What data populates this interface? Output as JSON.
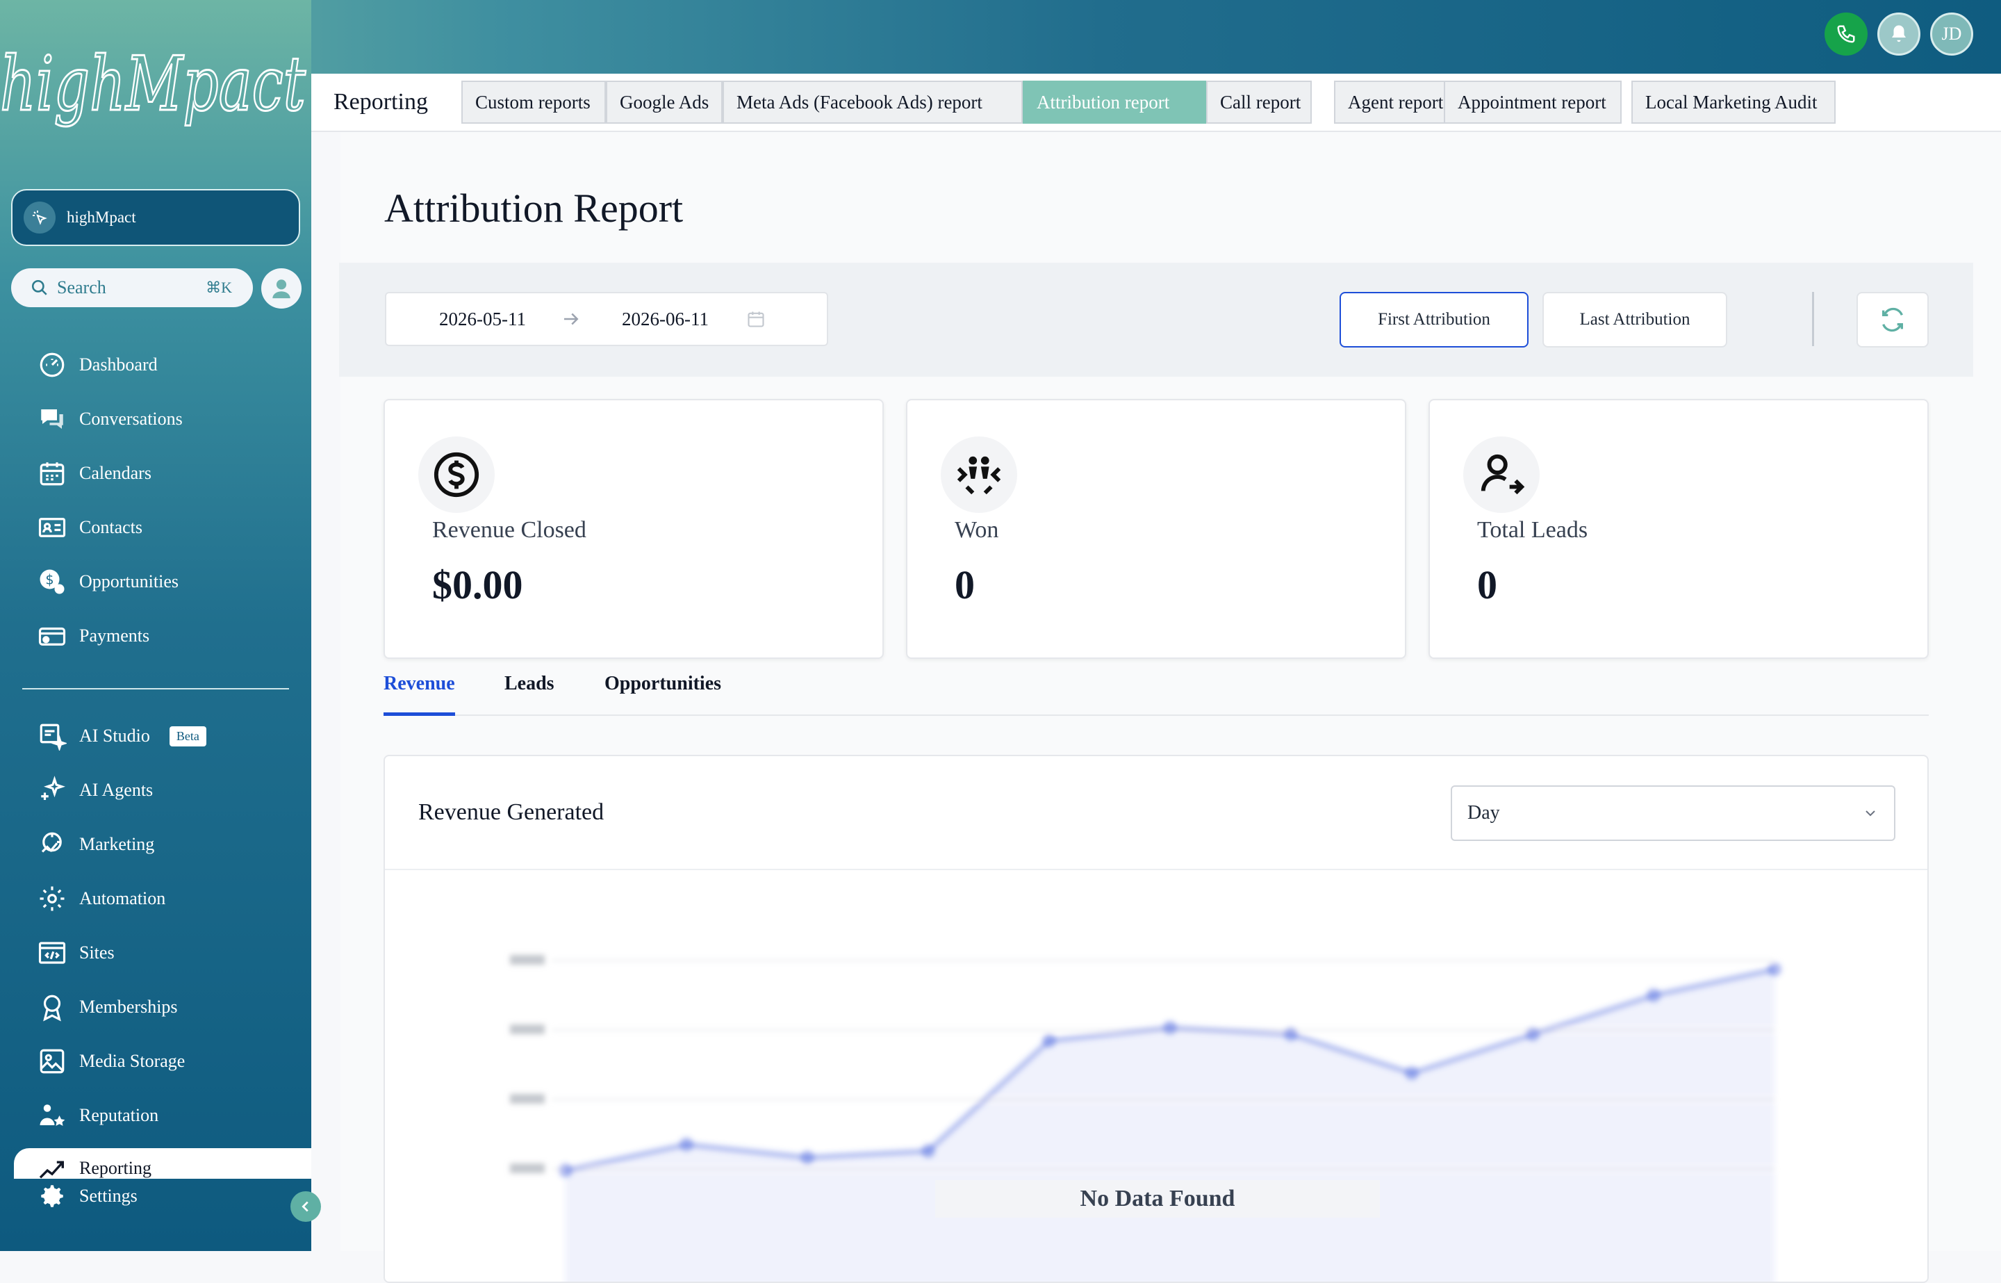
{
  "brand": {
    "logo_text": "highMpact",
    "account_name": "highMpact"
  },
  "header": {
    "avatar_initials": "JD"
  },
  "search": {
    "label": "Search",
    "shortcut": "⌘K"
  },
  "sidebar": {
    "items": [
      {
        "label": "Dashboard",
        "icon": "dashboard-icon"
      },
      {
        "label": "Conversations",
        "icon": "chat-icon"
      },
      {
        "label": "Calendars",
        "icon": "calendar-icon"
      },
      {
        "label": "Contacts",
        "icon": "contacts-icon"
      },
      {
        "label": "Opportunities",
        "icon": "opportunities-icon"
      },
      {
        "label": "Payments",
        "icon": "payments-icon"
      }
    ],
    "items2": [
      {
        "label": "AI Studio",
        "badge": "Beta",
        "icon": "ai-studio-icon"
      },
      {
        "label": "AI Agents",
        "icon": "sparkle-icon"
      },
      {
        "label": "Marketing",
        "icon": "marketing-icon"
      },
      {
        "label": "Automation",
        "icon": "automation-icon"
      },
      {
        "label": "Sites",
        "icon": "sites-icon"
      },
      {
        "label": "Memberships",
        "icon": "memberships-icon"
      },
      {
        "label": "Media Storage",
        "icon": "image-icon"
      },
      {
        "label": "Reputation",
        "icon": "reputation-icon"
      }
    ],
    "active_item": "Reporting",
    "settings_label": "Settings"
  },
  "tabbar": {
    "section": "Reporting",
    "tabs": [
      "Custom reports",
      "Google Ads",
      "Meta Ads (Facebook Ads) report",
      "Attribution report",
      "Call report",
      "Agent report",
      "Appointment report",
      "Local Marketing Audit"
    ],
    "active_tab": "Attribution report"
  },
  "page": {
    "title": "Attribution Report"
  },
  "filters": {
    "start_date": "2026-05-11",
    "end_date": "2026-06-11",
    "first_attribution": "First Attribution",
    "last_attribution": "Last Attribution",
    "selected": "First Attribution"
  },
  "cards": [
    {
      "label": "Revenue Closed",
      "value": "$0.00",
      "icon": "dollar-icon"
    },
    {
      "label": "Won",
      "value": "0",
      "icon": "handshake-icon"
    },
    {
      "label": "Total Leads",
      "value": "0",
      "icon": "lead-user-icon"
    }
  ],
  "subtabs": {
    "items": [
      "Revenue",
      "Leads",
      "Opportunities"
    ],
    "active": "Revenue"
  },
  "chart_panel": {
    "title": "Revenue Generated",
    "period": "Day",
    "empty_message": "No Data Found"
  },
  "chart_data": {
    "type": "area",
    "placeholder": true,
    "values": [
      0.9,
      1.1,
      1.0,
      1.05,
      1.9,
      2.0,
      1.95,
      1.65,
      1.95,
      2.25,
      2.45
    ],
    "ylim": [
      0,
      3
    ],
    "color": "#3b5bdb"
  },
  "colors": {
    "accent": "#1d4ed8",
    "active_tab": "#7fc4b5",
    "phone": "#16a34a"
  }
}
